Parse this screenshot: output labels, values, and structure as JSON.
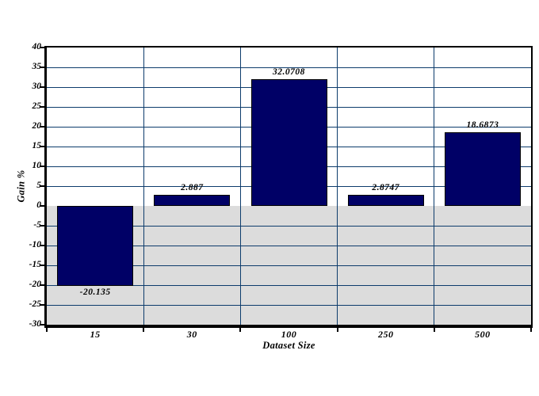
{
  "chart_data": {
    "type": "bar",
    "title": "",
    "xlabel": "Dataset Size",
    "ylabel": "Gain %",
    "categories": [
      "15",
      "30",
      "100",
      "250",
      "500"
    ],
    "values": [
      -20.135,
      2.887,
      32.0708,
      2.8747,
      18.6873
    ],
    "value_labels": [
      "-20.135",
      "2.887",
      "32.0708",
      "2.8747",
      "18.6873"
    ],
    "ylim": [
      -30,
      40
    ],
    "ytick_step": 5,
    "grid": true,
    "gridlines": {
      "horizontal": true,
      "vertical": true
    },
    "legend": "none",
    "colors": {
      "bar_fill": "#000066",
      "bar_outline": "#000000",
      "gridline": "#0d3c6c",
      "negative_region": "#dcdcdc",
      "axis": "#000000",
      "text": "#000000",
      "background": "#ffffff"
    }
  }
}
